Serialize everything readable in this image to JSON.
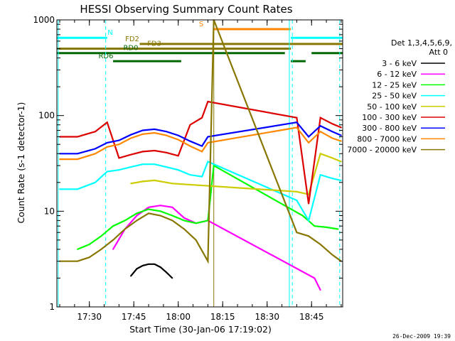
{
  "chart_data": {
    "type": "line",
    "title": "HESSI Observing Summary Count Rates",
    "xlabel": "Start Time (30-Jan-06 17:19:02)",
    "ylabel": "Count Rate (s-1 detector-1)",
    "yscale": "log",
    "xlim": [
      "17:19:02",
      "18:55:30"
    ],
    "ylim": [
      1,
      1000
    ],
    "x_ticks": [
      "17:30",
      "17:45",
      "18:00",
      "18:15",
      "18:30",
      "18:45"
    ],
    "y_ticks": [
      1,
      10,
      100,
      1000
    ],
    "legend": {
      "title_line1": "Det 1,3,4,5,6,9,",
      "title_line2": "Att 0",
      "placement": "right"
    },
    "series": [
      {
        "name": "3 - 6 keV",
        "color": "#000000",
        "x": [
          "17:44:00",
          "17:46:00",
          "17:48:00",
          "17:50:00",
          "17:52:00",
          "17:54:00",
          "17:56:00",
          "17:58:00"
        ],
        "y": [
          2.1,
          2.5,
          2.7,
          2.8,
          2.8,
          2.6,
          2.3,
          2.0
        ]
      },
      {
        "name": "6 - 12 keV",
        "color": "#ff00ff",
        "x": [
          "17:38:00",
          "17:42:00",
          "17:46:00",
          "17:50:00",
          "17:54:00",
          "17:58:00",
          "18:02:00",
          "18:06:00",
          "18:10:00",
          "18:46:00",
          "18:48:00"
        ],
        "y": [
          4.0,
          6.5,
          9.0,
          11.0,
          11.5,
          11.0,
          8.5,
          7.5,
          8.0,
          2.0,
          1.5
        ]
      },
      {
        "name": "12 - 25 keV",
        "color": "#00ff00",
        "x": [
          "17:26:00",
          "17:30:00",
          "17:34:00",
          "17:38:00",
          "17:42:00",
          "17:46:00",
          "17:50:00",
          "17:54:00",
          "17:58:00",
          "18:02:00",
          "18:06:00",
          "18:10:00",
          "18:12:00",
          "18:42:00",
          "18:46:00",
          "18:50:00",
          "18:54:00"
        ],
        "y": [
          4.0,
          4.5,
          5.5,
          7.0,
          8.0,
          9.5,
          10.5,
          10.0,
          9.0,
          8.0,
          7.5,
          8.0,
          30.0,
          9.0,
          7.0,
          6.8,
          6.5
        ]
      },
      {
        "name": "25 - 50 keV",
        "color": "#00ffff",
        "x": [
          "17:20:00",
          "17:26:00",
          "17:32:00",
          "17:36:00",
          "17:40:00",
          "17:44:00",
          "17:48:00",
          "17:52:00",
          "17:56:00",
          "18:00:00",
          "18:04:00",
          "18:08:00",
          "18:10:00",
          "18:40:00",
          "18:44:00",
          "18:48:00",
          "18:52:00",
          "18:55:00"
        ],
        "y": [
          17,
          17,
          20,
          26,
          27,
          29,
          31,
          31,
          29,
          27,
          24,
          23,
          33,
          13,
          8,
          24,
          22,
          21
        ]
      },
      {
        "name": "50 - 100 keV",
        "color": "#cccc00",
        "x": [
          "17:44:00",
          "17:48:00",
          "17:52:00",
          "17:56:00",
          "17:58:00",
          "18:40:00",
          "18:44:00",
          "18:48:00",
          "18:52:00",
          "18:55:00"
        ],
        "y": [
          19.5,
          20.5,
          21.0,
          20.0,
          19.5,
          16.0,
          15.0,
          40.0,
          36.0,
          33.0
        ]
      },
      {
        "name": "100 - 300 keV",
        "color": "#dd0000",
        "x": [
          "17:20:00",
          "17:26:00",
          "17:32:00",
          "17:36:00",
          "17:40:00",
          "17:44:00",
          "17:48:00",
          "17:52:00",
          "17:56:00",
          "18:00:00",
          "18:04:00",
          "18:08:00",
          "18:10:00",
          "18:40:00",
          "18:44:00",
          "18:48:00",
          "18:52:00",
          "18:55:00"
        ],
        "y": [
          60,
          60,
          68,
          85,
          36,
          39,
          42,
          43,
          41,
          38,
          80,
          95,
          140,
          95,
          12,
          95,
          82,
          75
        ]
      },
      {
        "name": "300 - 800 keV",
        "color": "#0000ff",
        "x": [
          "17:20:00",
          "17:26:00",
          "17:32:00",
          "17:36:00",
          "17:40:00",
          "17:44:00",
          "17:48:00",
          "17:52:00",
          "17:56:00",
          "18:00:00",
          "18:04:00",
          "18:08:00",
          "18:10:00",
          "18:40:00",
          "18:44:00",
          "18:48:00",
          "18:52:00",
          "18:55:00"
        ],
        "y": [
          40,
          40,
          45,
          52,
          55,
          63,
          70,
          72,
          68,
          62,
          54,
          48,
          60,
          85,
          60,
          78,
          68,
          62
        ]
      },
      {
        "name": "800 - 7000 keV",
        "color": "#ff8800",
        "x": [
          "17:20:00",
          "17:26:00",
          "17:32:00",
          "17:36:00",
          "17:40:00",
          "17:44:00",
          "17:48:00",
          "17:52:00",
          "17:56:00",
          "18:00:00",
          "18:04:00",
          "18:08:00",
          "18:10:00",
          "18:40:00",
          "18:44:00",
          "18:48:00",
          "18:52:00",
          "18:55:00"
        ],
        "y": [
          35,
          35,
          40,
          47,
          50,
          58,
          64,
          66,
          62,
          56,
          48,
          42,
          52,
          75,
          52,
          68,
          58,
          54
        ]
      },
      {
        "name": "7000 - 20000 keV",
        "color": "#887700",
        "x": [
          "17:20:00",
          "17:26:00",
          "17:30:00",
          "17:34:00",
          "17:38:00",
          "17:42:00",
          "17:46:00",
          "17:50:00",
          "17:54:00",
          "17:58:00",
          "18:02:00",
          "18:06:00",
          "18:10:00",
          "18:12:00",
          "18:40:00",
          "18:44:00",
          "18:48:00",
          "18:52:00",
          "18:55:00"
        ],
        "y": [
          3.0,
          3.0,
          3.3,
          4.0,
          5.0,
          6.5,
          8.0,
          9.5,
          9.0,
          8.0,
          6.5,
          5.0,
          3.0,
          1000,
          6.0,
          5.5,
          4.5,
          3.5,
          3.0
        ]
      }
    ],
    "flags": [
      {
        "label": "N",
        "color": "#00ffff",
        "level": 650,
        "segments": [
          [
            "17:19:02",
            "17:36:00"
          ],
          [
            "18:38:00",
            "18:55:30"
          ]
        ]
      },
      {
        "label": "S",
        "color": "#ff8800",
        "level": 800,
        "segments": [
          [
            "18:12:00",
            "18:38:00"
          ]
        ]
      },
      {
        "label": "FD2",
        "color": "#887700",
        "level": 560,
        "segments": [
          [
            "17:47:00",
            "18:55:30"
          ]
        ]
      },
      {
        "label": "FD3",
        "color": "#887700",
        "level": 500,
        "segments": [
          [
            "17:19:02",
            "18:38:00"
          ]
        ]
      },
      {
        "label": "RD0",
        "color": "#006600",
        "level": 450,
        "segments": [
          [
            "17:19:02",
            "18:36:00"
          ],
          [
            "18:45:00",
            "18:55:30"
          ]
        ]
      },
      {
        "label": "RD6",
        "color": "#006600",
        "level": 370,
        "segments": [
          [
            "17:38:00",
            "18:01:00"
          ],
          [
            "18:38:00",
            "18:43:00"
          ]
        ]
      }
    ],
    "vlines": [
      {
        "time": "17:19:30",
        "color": "#00ffff",
        "style": "solid"
      },
      {
        "time": "17:35:30",
        "color": "#00ffff",
        "style": "dashed"
      },
      {
        "time": "18:12:00",
        "color": "#887700",
        "style": "solid"
      },
      {
        "time": "18:37:30",
        "color": "#00ffff",
        "style": "solid"
      },
      {
        "time": "18:38:30",
        "color": "#00ffff",
        "style": "dashed"
      },
      {
        "time": "18:54:30",
        "color": "#00ffff",
        "style": "dashed"
      }
    ]
  },
  "footer": {
    "timestamp": "26-Dec-2009 19:39"
  }
}
